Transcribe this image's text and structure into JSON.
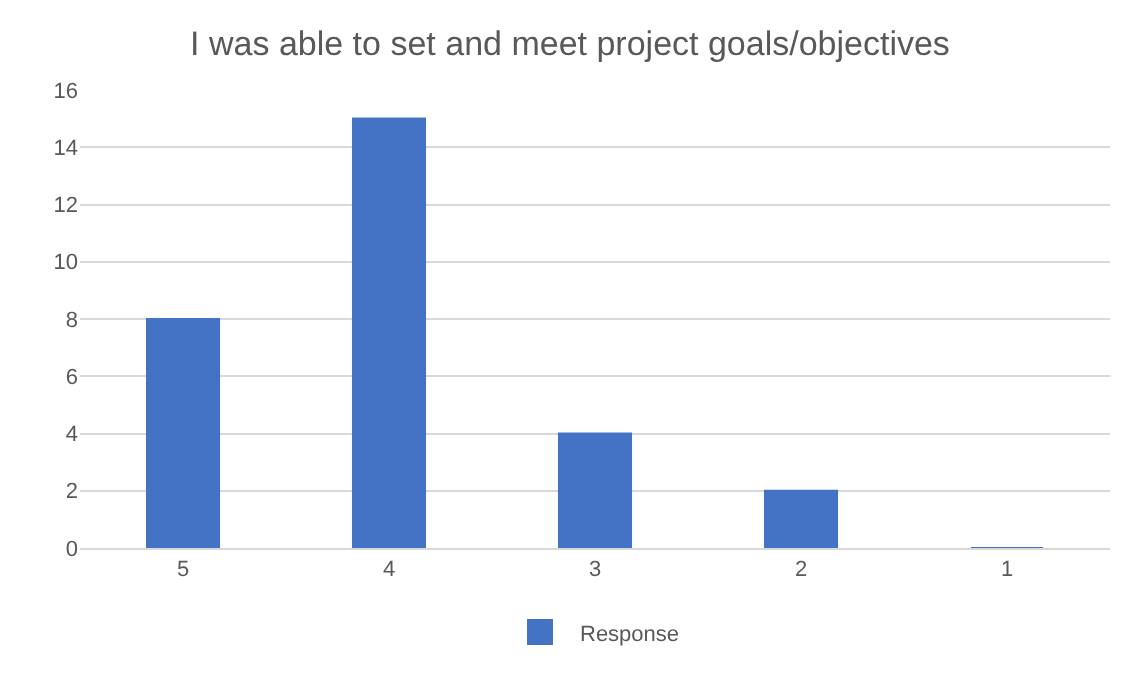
{
  "chart_data": {
    "type": "bar",
    "title": "I was able to set and meet project goals/objectives",
    "categories": [
      "5",
      "4",
      "3",
      "2",
      "1"
    ],
    "series": [
      {
        "name": "Response",
        "color": "#4472c4",
        "values": [
          8,
          15,
          4,
          2,
          0
        ]
      }
    ],
    "ylim": [
      0,
      16
    ],
    "yticks": [
      0,
      2,
      4,
      6,
      8,
      10,
      12,
      14,
      16
    ],
    "grid": "y",
    "legend": "bottom"
  }
}
